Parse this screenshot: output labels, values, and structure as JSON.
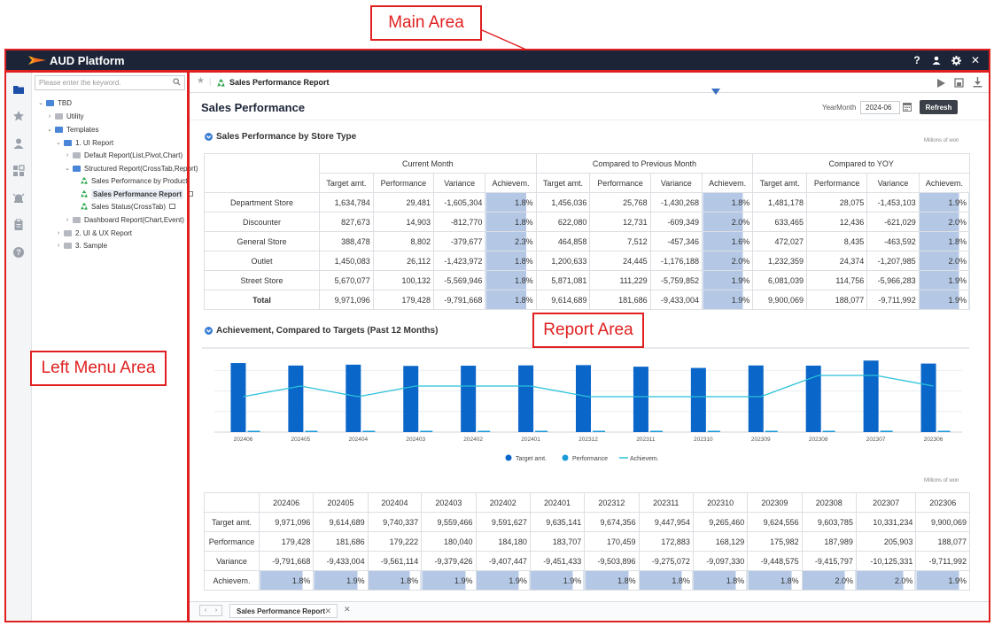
{
  "annotations": {
    "main_area": "Main Area",
    "report_area": "Report Area",
    "left_menu_area": "Left Menu Area"
  },
  "app": {
    "title": "AUD Platform",
    "icons": [
      "help-icon",
      "user-icon",
      "gear-icon",
      "close-icon"
    ],
    "accent": "#1c2538"
  },
  "sidebar_icons": [
    "folder-icon",
    "star-icon",
    "person-icon",
    "dashboard-icon",
    "alarm-icon",
    "clipboard-icon",
    "help-circle-icon"
  ],
  "tree": {
    "search_placeholder": "Please enter the keyword.",
    "nodes": [
      {
        "label": "TBD",
        "level": 0,
        "chevron": "⌄",
        "type": "folder-blue"
      },
      {
        "label": "Utility",
        "level": 1,
        "chevron": "›",
        "type": "folder-gray"
      },
      {
        "label": "Templates",
        "level": 1,
        "chevron": "⌄",
        "type": "folder-blue"
      },
      {
        "label": "1. UI Report",
        "level": 2,
        "chevron": "⌄",
        "type": "folder-blue"
      },
      {
        "label": "Default Report(List,Pivot,Chart)",
        "level": 3,
        "chevron": "›",
        "type": "folder-gray"
      },
      {
        "label": "Structured Report(CrossTab,Report)",
        "level": 3,
        "chevron": "⌄",
        "type": "folder-blue"
      },
      {
        "label": "Sales Performance by Product",
        "level": 4,
        "chevron": "",
        "type": "report"
      },
      {
        "label": "Sales Performance Report",
        "level": 4,
        "chevron": "",
        "type": "report",
        "selected": true
      },
      {
        "label": "Sales Status(CrossTab)",
        "level": 4,
        "chevron": "",
        "type": "report"
      },
      {
        "label": "Dashboard Report(Chart,Event)",
        "level": 3,
        "chevron": "›",
        "type": "folder-gray"
      },
      {
        "label": "2. UI & UX Report",
        "level": 2,
        "chevron": "›",
        "type": "folder-gray"
      },
      {
        "label": "3. Sample",
        "level": 2,
        "chevron": "›",
        "type": "folder-gray"
      }
    ]
  },
  "report": {
    "tab_title": "Sales Performance Report",
    "page_title": "Sales Performance",
    "yearmonth_label": "YearMonth",
    "yearmonth_value": "2024-06",
    "refresh_label": "Refresh"
  },
  "section1": {
    "title": "Sales Performance by Store Type",
    "unit": "Millions of won",
    "groups": [
      "Current Month",
      "Compared to Previous Month",
      "Compared to YOY"
    ],
    "columns": [
      "Target amt.",
      "Performance",
      "Variance",
      "Achievem."
    ],
    "rows": [
      {
        "label": "Department Store",
        "values": [
          "1,634,784",
          "29,481",
          "-1,605,304",
          "1.8%",
          "1,456,036",
          "25,768",
          "-1,430,268",
          "1.8%",
          "1,481,178",
          "28,075",
          "-1,453,103",
          "1.9%"
        ]
      },
      {
        "label": "Discounter",
        "values": [
          "827,673",
          "14,903",
          "-812,770",
          "1.8%",
          "622,080",
          "12,731",
          "-609,349",
          "2.0%",
          "633,465",
          "12,436",
          "-621,029",
          "2.0%"
        ]
      },
      {
        "label": "General Store",
        "values": [
          "388,478",
          "8,802",
          "-379,677",
          "2.3%",
          "464,858",
          "7,512",
          "-457,346",
          "1.6%",
          "472,027",
          "8,435",
          "-463,592",
          "1.8%"
        ]
      },
      {
        "label": "Outlet",
        "values": [
          "1,450,083",
          "26,112",
          "-1,423,972",
          "1.8%",
          "1,200,633",
          "24,445",
          "-1,176,188",
          "2.0%",
          "1,232,359",
          "24,374",
          "-1,207,985",
          "2.0%"
        ]
      },
      {
        "label": "Street Store",
        "values": [
          "5,670,077",
          "100,132",
          "-5,569,946",
          "1.8%",
          "5,871,081",
          "111,229",
          "-5,759,852",
          "1.9%",
          "6,081,039",
          "114,756",
          "-5,966,283",
          "1.9%"
        ]
      },
      {
        "label": "Total",
        "values": [
          "9,971,096",
          "179,428",
          "-9,791,668",
          "1.8%",
          "9,614,689",
          "181,686",
          "-9,433,004",
          "1.9%",
          "9,900,069",
          "188,077",
          "-9,711,992",
          "1.9%"
        ],
        "bold": true
      }
    ]
  },
  "section2": {
    "title": "Achievement, Compared to Targets (Past 12 Months)",
    "unit": "Millions of won",
    "row_labels": [
      "Target amt.",
      "Performance",
      "Variance",
      "Achievem."
    ],
    "months": [
      "202406",
      "202405",
      "202404",
      "202403",
      "202402",
      "202401",
      "202312",
      "202311",
      "202310",
      "202309",
      "202308",
      "202307",
      "202306"
    ],
    "target": [
      "9,971,096",
      "9,614,689",
      "9,740,337",
      "9,559,466",
      "9,591,627",
      "9,635,141",
      "9,674,356",
      "9,447,954",
      "9,265,460",
      "9,624,556",
      "9,603,785",
      "10,331,234",
      "9,900,069"
    ],
    "performance": [
      "179,428",
      "181,686",
      "179,222",
      "180,040",
      "184,180",
      "183,707",
      "170,459",
      "172,883",
      "168,129",
      "175,982",
      "187,989",
      "205,903",
      "188,077"
    ],
    "variance": [
      "-9,791,668",
      "-9,433,004",
      "-9,561,114",
      "-9,379,426",
      "-9,407,447",
      "-9,451,433",
      "-9,503,896",
      "-9,275,072",
      "-9,097,330",
      "-9,448,575",
      "-9,415,797",
      "-10,125,331",
      "-9,711,992"
    ],
    "achievement": [
      "1.8%",
      "1.9%",
      "1.8%",
      "1.9%",
      "1.9%",
      "1.9%",
      "1.8%",
      "1.8%",
      "1.8%",
      "1.8%",
      "2.0%",
      "2.0%",
      "1.9%"
    ]
  },
  "chart_data": {
    "type": "bar",
    "categories": [
      "202406",
      "202405",
      "202404",
      "202403",
      "202402",
      "202401",
      "202312",
      "202311",
      "202310",
      "202309",
      "202308",
      "202307",
      "202306"
    ],
    "series": [
      {
        "name": "Target amt.",
        "kind": "bar",
        "color": "#0a66c8",
        "values": [
          9971096,
          9614689,
          9740337,
          9559466,
          9591627,
          9635141,
          9674356,
          9447954,
          9265460,
          9624556,
          9603785,
          10331234,
          9900069
        ]
      },
      {
        "name": "Performance",
        "kind": "bar",
        "color": "#1a9bd8",
        "values": [
          179428,
          181686,
          179222,
          180040,
          184180,
          183707,
          170459,
          172883,
          168129,
          175982,
          187989,
          205903,
          188077
        ]
      },
      {
        "name": "Achievem.",
        "kind": "line",
        "color": "#29c1d9",
        "values": [
          1.8,
          1.9,
          1.8,
          1.9,
          1.9,
          1.9,
          1.8,
          1.8,
          1.8,
          1.8,
          2.0,
          2.0,
          1.9
        ]
      }
    ],
    "ylim": [
      0,
      11000000
    ],
    "grid": true,
    "legend": "bottom"
  }
}
